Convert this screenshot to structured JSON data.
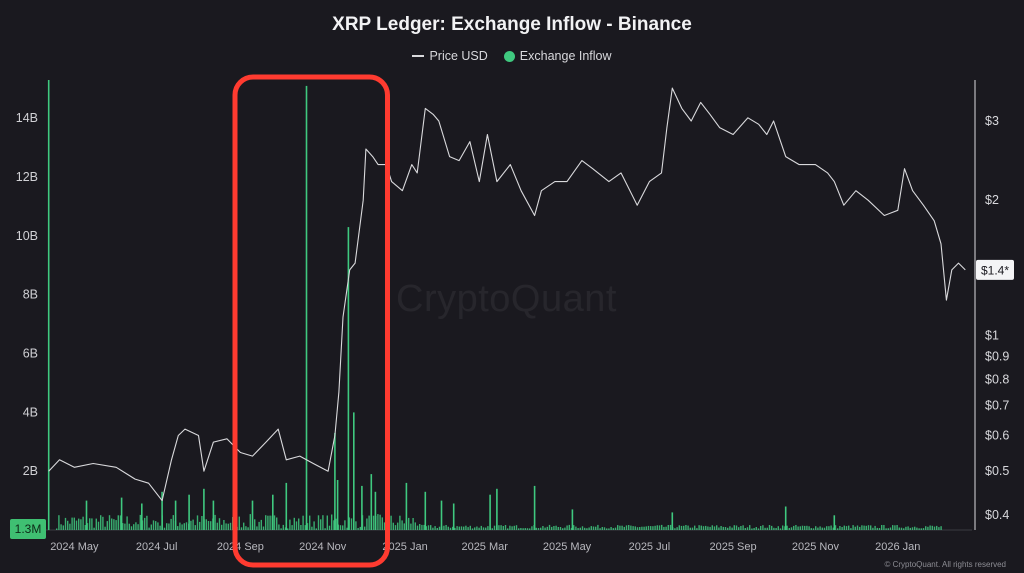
{
  "chart_data": {
    "type": "line",
    "title": "XRP Ledger: Exchange Inflow - Binance",
    "legend": {
      "placement": "top-center",
      "items": [
        {
          "label": "Price USD",
          "marker": "line"
        },
        {
          "label": "Exchange Inflow",
          "marker": "dot"
        }
      ]
    },
    "grid": false,
    "watermark": "CryptoQuant",
    "footer": "© CryptoQuant. All rights reserved",
    "x_axis": {
      "type": "date",
      "range": [
        "2024-04-10",
        "2026-02-25"
      ],
      "tick_labels": [
        {
          "date": "2024-05-01",
          "label": "2024 May"
        },
        {
          "date": "2024-07-01",
          "label": "2024 Jul"
        },
        {
          "date": "2024-09-01",
          "label": "2024 Sep"
        },
        {
          "date": "2024-11-01",
          "label": "2024 Nov"
        },
        {
          "date": "2025-01-01",
          "label": "2025 Jan"
        },
        {
          "date": "2025-03-01",
          "label": "2025 Mar"
        },
        {
          "date": "2025-05-01",
          "label": "2025 May"
        },
        {
          "date": "2025-07-01",
          "label": "2025 Jul"
        },
        {
          "date": "2025-09-01",
          "label": "2025 Sep"
        },
        {
          "date": "2025-11-01",
          "label": "2025 Nov"
        },
        {
          "date": "2026-01-01",
          "label": "2026 Jan"
        }
      ]
    },
    "y_axis_left": {
      "name": "Exchange Inflow",
      "scale": "linear",
      "range": [
        0,
        15300000000
      ],
      "tick_labels": [
        {
          "value": 2000000000,
          "label": "2B"
        },
        {
          "value": 4000000000,
          "label": "4B"
        },
        {
          "value": 6000000000,
          "label": "6B"
        },
        {
          "value": 8000000000,
          "label": "8B"
        },
        {
          "value": 10000000000,
          "label": "10B"
        },
        {
          "value": 12000000000,
          "label": "12B"
        },
        {
          "value": 14000000000,
          "label": "14B"
        }
      ],
      "current_value_label": {
        "value": 1300000,
        "label": "1.3M",
        "color": "#3fbf72"
      }
    },
    "y_axis_right": {
      "name": "Price USD",
      "scale": "log",
      "range": [
        0.37,
        3.7
      ],
      "tick_labels": [
        {
          "value": 0.4,
          "label": "$0.4"
        },
        {
          "value": 0.5,
          "label": "$0.5"
        },
        {
          "value": 0.6,
          "label": "$0.6"
        },
        {
          "value": 0.7,
          "label": "$0.7"
        },
        {
          "value": 0.8,
          "label": "$0.8"
        },
        {
          "value": 0.9,
          "label": "$0.9"
        },
        {
          "value": 1,
          "label": "$1"
        },
        {
          "value": 2,
          "label": "$2"
        },
        {
          "value": 3,
          "label": "$3"
        }
      ],
      "current_value_label": {
        "value": 1.4,
        "label": "$1.4*"
      }
    },
    "series": [
      {
        "name": "Price USD",
        "kind": "line",
        "color": "#d9d9dc",
        "points": [
          [
            "2024-04-12",
            0.5
          ],
          [
            "2024-04-20",
            0.53
          ],
          [
            "2024-05-01",
            0.51
          ],
          [
            "2024-05-15",
            0.52
          ],
          [
            "2024-06-01",
            0.51
          ],
          [
            "2024-06-15",
            0.48
          ],
          [
            "2024-06-25",
            0.47
          ],
          [
            "2024-07-05",
            0.43
          ],
          [
            "2024-07-12",
            0.53
          ],
          [
            "2024-07-17",
            0.6
          ],
          [
            "2024-07-22",
            0.62
          ],
          [
            "2024-08-01",
            0.6
          ],
          [
            "2024-08-05",
            0.5
          ],
          [
            "2024-08-12",
            0.58
          ],
          [
            "2024-08-22",
            0.59
          ],
          [
            "2024-09-01",
            0.55
          ],
          [
            "2024-09-10",
            0.54
          ],
          [
            "2024-09-20",
            0.58
          ],
          [
            "2024-09-29",
            0.62
          ],
          [
            "2024-10-05",
            0.53
          ],
          [
            "2024-10-15",
            0.54
          ],
          [
            "2024-10-25",
            0.52
          ],
          [
            "2024-11-05",
            0.5
          ],
          [
            "2024-11-10",
            0.6
          ],
          [
            "2024-11-13",
            0.75
          ],
          [
            "2024-11-16",
            1.1
          ],
          [
            "2024-11-21",
            1.4
          ],
          [
            "2024-11-25",
            1.45
          ],
          [
            "2024-12-01",
            2.0
          ],
          [
            "2024-12-03",
            2.6
          ],
          [
            "2024-12-08",
            2.5
          ],
          [
            "2024-12-12",
            2.4
          ],
          [
            "2024-12-18",
            2.4
          ],
          [
            "2024-12-22",
            2.2
          ],
          [
            "2024-12-30",
            2.1
          ],
          [
            "2025-01-06",
            2.4
          ],
          [
            "2025-01-10",
            2.3
          ],
          [
            "2025-01-16",
            3.2
          ],
          [
            "2025-01-22",
            3.1
          ],
          [
            "2025-01-26",
            3.0
          ],
          [
            "2025-02-03",
            2.5
          ],
          [
            "2025-02-10",
            2.45
          ],
          [
            "2025-02-18",
            2.7
          ],
          [
            "2025-02-25",
            2.2
          ],
          [
            "2025-03-03",
            2.8
          ],
          [
            "2025-03-10",
            2.2
          ],
          [
            "2025-03-20",
            2.4
          ],
          [
            "2025-03-28",
            2.1
          ],
          [
            "2025-04-07",
            1.85
          ],
          [
            "2025-04-12",
            2.1
          ],
          [
            "2025-04-22",
            2.2
          ],
          [
            "2025-05-01",
            2.2
          ],
          [
            "2025-05-12",
            2.45
          ],
          [
            "2025-05-20",
            2.35
          ],
          [
            "2025-06-01",
            2.2
          ],
          [
            "2025-06-10",
            2.3
          ],
          [
            "2025-06-22",
            1.95
          ],
          [
            "2025-07-01",
            2.2
          ],
          [
            "2025-07-10",
            2.3
          ],
          [
            "2025-07-14",
            2.9
          ],
          [
            "2025-07-18",
            3.55
          ],
          [
            "2025-07-25",
            3.2
          ],
          [
            "2025-08-01",
            3.0
          ],
          [
            "2025-08-08",
            3.3
          ],
          [
            "2025-08-15",
            3.1
          ],
          [
            "2025-08-22",
            2.9
          ],
          [
            "2025-09-01",
            2.8
          ],
          [
            "2025-09-12",
            3.05
          ],
          [
            "2025-09-20",
            2.95
          ],
          [
            "2025-09-26",
            2.8
          ],
          [
            "2025-10-01",
            3.0
          ],
          [
            "2025-10-10",
            2.5
          ],
          [
            "2025-10-20",
            2.4
          ],
          [
            "2025-11-01",
            2.4
          ],
          [
            "2025-11-10",
            2.3
          ],
          [
            "2025-11-15",
            2.2
          ],
          [
            "2025-11-22",
            1.95
          ],
          [
            "2025-12-01",
            2.1
          ],
          [
            "2025-12-10",
            2.0
          ],
          [
            "2025-12-22",
            1.85
          ],
          [
            "2026-01-01",
            1.9
          ],
          [
            "2026-01-06",
            2.35
          ],
          [
            "2026-01-12",
            2.1
          ],
          [
            "2026-01-20",
            1.95
          ],
          [
            "2026-01-28",
            1.8
          ],
          [
            "2026-02-02",
            1.6
          ],
          [
            "2026-02-06",
            1.2
          ],
          [
            "2026-02-10",
            1.4
          ],
          [
            "2026-02-15",
            1.45
          ],
          [
            "2026-02-20",
            1.4
          ]
        ]
      },
      {
        "name": "Exchange Inflow",
        "kind": "bars",
        "color": "#3fc97f",
        "spikes": [
          [
            "2024-04-12",
            15300000000
          ],
          [
            "2024-05-10",
            1000000000
          ],
          [
            "2024-06-05",
            1100000000
          ],
          [
            "2024-06-20",
            900000000
          ],
          [
            "2024-07-05",
            1300000000
          ],
          [
            "2024-07-15",
            1000000000
          ],
          [
            "2024-07-25",
            1200000000
          ],
          [
            "2024-08-05",
            1400000000
          ],
          [
            "2024-08-12",
            1000000000
          ],
          [
            "2024-08-28",
            1500000000
          ],
          [
            "2024-09-10",
            1000000000
          ],
          [
            "2024-09-25",
            1200000000
          ],
          [
            "2024-10-05",
            1600000000
          ],
          [
            "2024-10-20",
            15100000000
          ],
          [
            "2024-11-10",
            3300000000
          ],
          [
            "2024-11-12",
            1700000000
          ],
          [
            "2024-11-20",
            10300000000
          ],
          [
            "2024-11-24",
            4000000000
          ],
          [
            "2024-11-30",
            1500000000
          ],
          [
            "2024-12-07",
            1900000000
          ],
          [
            "2024-12-10",
            1300000000
          ],
          [
            "2024-12-18",
            2500000000
          ],
          [
            "2025-01-02",
            1600000000
          ],
          [
            "2025-01-16",
            1300000000
          ],
          [
            "2025-01-28",
            1000000000
          ],
          [
            "2025-02-06",
            900000000
          ],
          [
            "2025-03-05",
            1200000000
          ],
          [
            "2025-03-10",
            1400000000
          ],
          [
            "2025-04-07",
            1500000000
          ],
          [
            "2025-05-05",
            700000000
          ],
          [
            "2025-07-18",
            600000000
          ],
          [
            "2025-10-10",
            800000000
          ],
          [
            "2025-11-15",
            500000000
          ]
        ],
        "baseline_noise_level": 350000000
      }
    ],
    "annotations": [
      {
        "type": "highlight-box",
        "color": "#ff3b30",
        "x_range": [
          "2024-08-28",
          "2024-12-19"
        ]
      }
    ]
  }
}
